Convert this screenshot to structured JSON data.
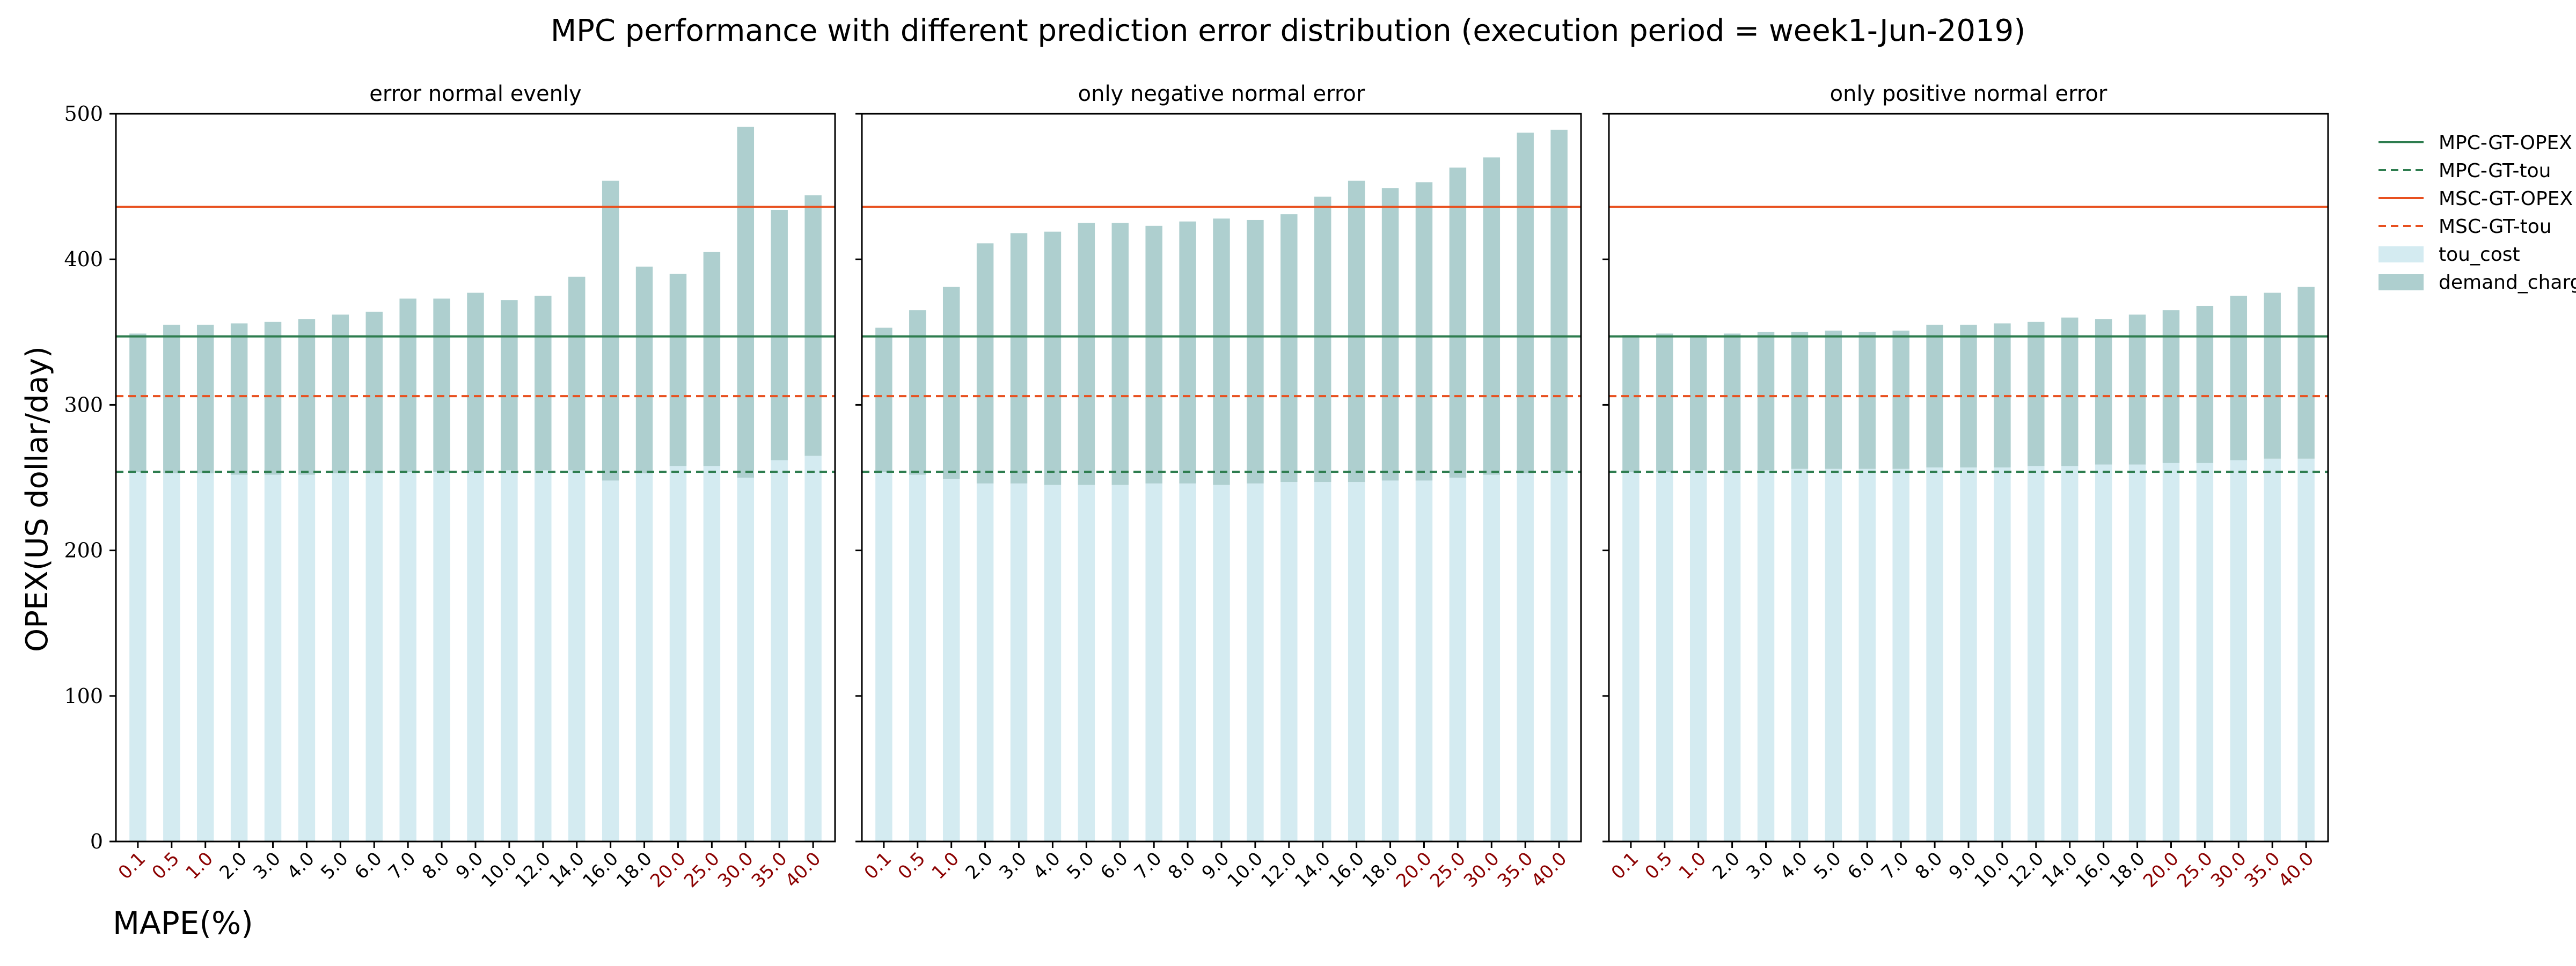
{
  "figure": {
    "title": "MPC performance with different prediction error distribution (execution period = week1-Jun-2019)",
    "ylabel": "OPEX(US dollar/day)",
    "xlabel": "MAPE(%)"
  },
  "legend": {
    "position": "right",
    "entries": [
      {
        "label": "MPC-GT-OPEX",
        "style": "solid-line",
        "color": "#2e7d4f"
      },
      {
        "label": "MPC-GT-tou",
        "style": "dashed-line",
        "color": "#2e7d4f"
      },
      {
        "label": "MSC-GT-OPEX",
        "style": "solid-line",
        "color": "#e8501f"
      },
      {
        "label": "MSC-GT-tou",
        "style": "dashed-line",
        "color": "#e8501f"
      },
      {
        "label": "tou_cost",
        "style": "patch",
        "color": "#d4ebf1"
      },
      {
        "label": "demand_charge",
        "style": "patch",
        "color": "#aecfcf"
      }
    ]
  },
  "colors": {
    "tou": "#d4ebf1",
    "demand": "#aecfcf",
    "mpc": "#2e7d4f",
    "msc": "#e8501f",
    "tick_highlight": "#8b0000",
    "tick_normal": "#000000"
  },
  "chart_data": [
    {
      "type": "bar",
      "stacked": true,
      "title": "error normal evenly",
      "categories": [
        "0.1",
        "0.5",
        "1.0",
        "2.0",
        "3.0",
        "4.0",
        "5.0",
        "6.0",
        "7.0",
        "8.0",
        "9.0",
        "10.0",
        "12.0",
        "14.0",
        "16.0",
        "18.0",
        "20.0",
        "25.0",
        "30.0",
        "35.0",
        "40.0"
      ],
      "highlighted_categories": [
        "0.1",
        "0.5",
        "1.0",
        "20.0",
        "25.0",
        "30.0",
        "35.0",
        "40.0"
      ],
      "series": [
        {
          "name": "tou_cost",
          "values": [
            254,
            253,
            253,
            252,
            252,
            252,
            253,
            253,
            254,
            254,
            254,
            255,
            255,
            255,
            248,
            253,
            258,
            258,
            250,
            262,
            265
          ]
        },
        {
          "name": "demand_charge",
          "values": [
            95,
            102,
            102,
            104,
            105,
            107,
            109,
            111,
            119,
            119,
            123,
            117,
            120,
            133,
            206,
            142,
            132,
            147,
            241,
            172,
            179
          ]
        }
      ],
      "hlines": [
        {
          "name": "MPC-GT-OPEX",
          "value": 347
        },
        {
          "name": "MPC-GT-tou",
          "value": 254
        },
        {
          "name": "MSC-GT-OPEX",
          "value": 436
        },
        {
          "name": "MSC-GT-tou",
          "value": 306
        }
      ],
      "ylim": [
        0,
        500
      ],
      "yticks": [
        0,
        100,
        200,
        300,
        400,
        500
      ],
      "grid": false
    },
    {
      "type": "bar",
      "stacked": true,
      "title": "only negative normal error",
      "categories": [
        "0.1",
        "0.5",
        "1.0",
        "2.0",
        "3.0",
        "4.0",
        "5.0",
        "6.0",
        "7.0",
        "8.0",
        "9.0",
        "10.0",
        "12.0",
        "14.0",
        "16.0",
        "18.0",
        "20.0",
        "25.0",
        "30.0",
        "35.0",
        "40.0"
      ],
      "highlighted_categories": [
        "0.1",
        "0.5",
        "1.0",
        "20.0",
        "25.0",
        "30.0",
        "35.0",
        "40.0"
      ],
      "series": [
        {
          "name": "tou_cost",
          "values": [
            254,
            252,
            249,
            246,
            246,
            245,
            245,
            245,
            246,
            246,
            245,
            246,
            247,
            247,
            247,
            248,
            248,
            250,
            252,
            253,
            254
          ]
        },
        {
          "name": "demand_charge",
          "values": [
            99,
            113,
            132,
            165,
            172,
            174,
            180,
            180,
            177,
            180,
            183,
            181,
            184,
            196,
            207,
            201,
            205,
            213,
            218,
            234,
            235
          ]
        }
      ],
      "hlines": [
        {
          "name": "MPC-GT-OPEX",
          "value": 347
        },
        {
          "name": "MPC-GT-tou",
          "value": 254
        },
        {
          "name": "MSC-GT-OPEX",
          "value": 436
        },
        {
          "name": "MSC-GT-tou",
          "value": 306
        }
      ],
      "ylim": [
        0,
        500
      ],
      "yticks": [
        0,
        100,
        200,
        300,
        400,
        500
      ],
      "grid": false
    },
    {
      "type": "bar",
      "stacked": true,
      "title": "only positive normal error",
      "categories": [
        "0.1",
        "0.5",
        "1.0",
        "2.0",
        "3.0",
        "4.0",
        "5.0",
        "6.0",
        "7.0",
        "8.0",
        "9.0",
        "10.0",
        "12.0",
        "14.0",
        "16.0",
        "18.0",
        "20.0",
        "25.0",
        "30.0",
        "35.0",
        "40.0"
      ],
      "highlighted_categories": [
        "0.1",
        "0.5",
        "1.0",
        "20.0",
        "25.0",
        "30.0",
        "35.0",
        "40.0"
      ],
      "series": [
        {
          "name": "tou_cost",
          "values": [
            254,
            254,
            255,
            255,
            255,
            256,
            256,
            256,
            256,
            257,
            257,
            257,
            258,
            258,
            259,
            259,
            260,
            260,
            262,
            263,
            263
          ]
        },
        {
          "name": "demand_charge",
          "values": [
            94,
            95,
            93,
            94,
            95,
            94,
            95,
            94,
            95,
            98,
            98,
            99,
            99,
            102,
            100,
            103,
            105,
            108,
            113,
            114,
            118
          ]
        }
      ],
      "hlines": [
        {
          "name": "MPC-GT-OPEX",
          "value": 347
        },
        {
          "name": "MPC-GT-tou",
          "value": 254
        },
        {
          "name": "MSC-GT-OPEX",
          "value": 436
        },
        {
          "name": "MSC-GT-tou",
          "value": 306
        }
      ],
      "ylim": [
        0,
        500
      ],
      "yticks": [
        0,
        100,
        200,
        300,
        400,
        500
      ],
      "grid": false
    }
  ]
}
